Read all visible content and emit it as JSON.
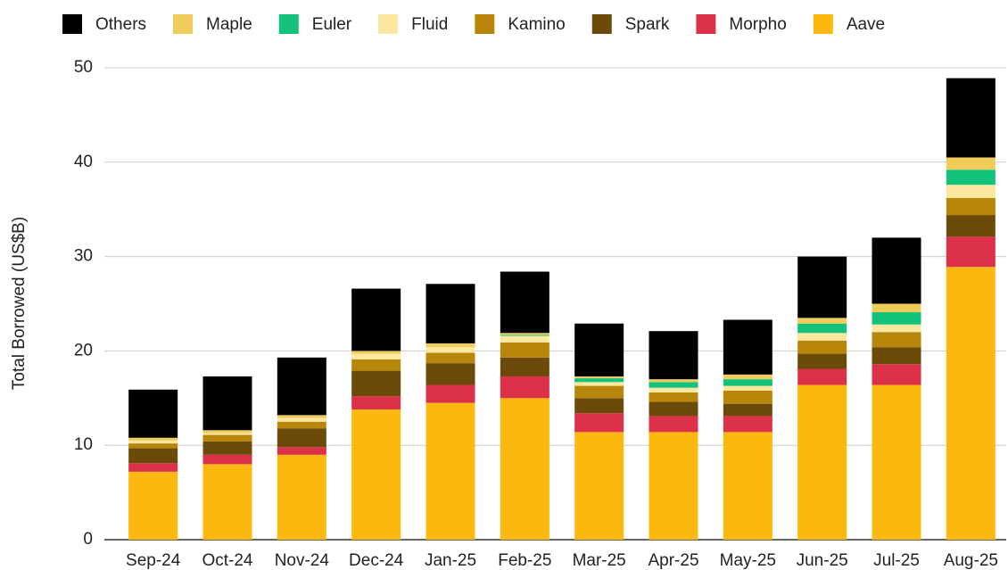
{
  "chart_data": {
    "type": "stacked_bar",
    "y_label": "Total Borrowed (US$B)",
    "categories": [
      "Sep-24",
      "Oct-24",
      "Nov-24",
      "Dec-24",
      "Jan-25",
      "Feb-25",
      "Mar-25",
      "Apr-25",
      "May-25",
      "Jun-25",
      "Jul-25",
      "Aug-25"
    ],
    "series": [
      {
        "name": "Others",
        "color": "#000000",
        "values": [
          5.1,
          5.7,
          6.1,
          6.6,
          6.3,
          6.5,
          5.6,
          5.1,
          5.8,
          6.5,
          7.0,
          8.4
        ]
      },
      {
        "name": "Maple",
        "color": "#f0cc5a",
        "values": [
          0.3,
          0.3,
          0.3,
          0.3,
          0.4,
          0.2,
          0.2,
          0.3,
          0.5,
          0.6,
          0.9,
          1.3
        ]
      },
      {
        "name": "Euler",
        "color": "#12c27a",
        "values": [
          0,
          0,
          0,
          0,
          0,
          0.1,
          0.4,
          0.6,
          0.7,
          1.0,
          1.3,
          1.6
        ]
      },
      {
        "name": "Fluid",
        "color": "#fbe7a0",
        "values": [
          0.3,
          0.2,
          0.4,
          0.6,
          0.6,
          0.7,
          0.4,
          0.5,
          0.5,
          0.8,
          0.8,
          1.4
        ]
      },
      {
        "name": "Kamino",
        "color": "#b8860b",
        "values": [
          0.5,
          0.7,
          0.7,
          1.2,
          1.1,
          1.6,
          1.3,
          1.0,
          1.4,
          1.4,
          1.6,
          1.8
        ]
      },
      {
        "name": "Spark",
        "color": "#6b4a0a",
        "values": [
          1.6,
          1.4,
          2.0,
          2.7,
          2.3,
          2.0,
          1.6,
          1.5,
          1.3,
          1.6,
          1.8,
          2.3
        ]
      },
      {
        "name": "Morpho",
        "color": "#dc3149",
        "values": [
          0.9,
          1.0,
          0.8,
          1.4,
          1.9,
          2.3,
          2.0,
          1.7,
          1.7,
          1.7,
          2.2,
          3.2
        ]
      },
      {
        "name": "Aave",
        "color": "#fbb80e",
        "values": [
          7.2,
          8.0,
          9.0,
          13.8,
          14.5,
          15.0,
          11.4,
          11.4,
          11.4,
          16.4,
          16.4,
          28.9
        ]
      }
    ],
    "ylim": [
      0,
      50
    ],
    "yticks": [
      0,
      10,
      20,
      30,
      40,
      50
    ],
    "grid": true,
    "legend": "top"
  }
}
